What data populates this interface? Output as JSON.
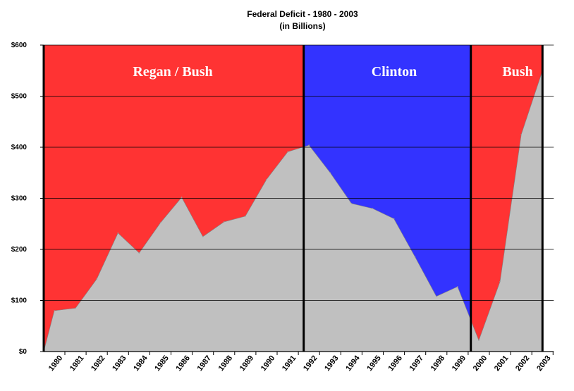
{
  "chart_data": {
    "type": "area",
    "title": "Federal Deficit - 1980 - 2003",
    "subtitle": "(in Billions)",
    "xlabel": "",
    "ylabel": "",
    "ylim": [
      0,
      600
    ],
    "yticks": [
      0,
      100,
      200,
      300,
      400,
      500,
      600
    ],
    "ytick_labels": [
      "$0",
      "$100",
      "$200",
      "$300",
      "$400",
      "$500",
      "$600"
    ],
    "grid": true,
    "colors": {
      "deficit_area": "#c0c0c0",
      "era_red": "#ff3333",
      "era_blue": "#3333ff",
      "era_text": "#ffffff",
      "gridline": "#000000"
    },
    "x_labels": [
      "1980",
      "1981",
      "1982",
      "1983",
      "1984",
      "1985",
      "1986",
      "1987",
      "1988",
      "1989",
      "1990",
      "1991",
      "1992",
      "1993",
      "1994",
      "1995",
      "1996",
      "1997",
      "1998",
      "1999",
      "2000",
      "2001",
      "2002",
      "2003"
    ],
    "x": [
      1979.5,
      1980,
      1981,
      1982,
      1983,
      1984,
      1985,
      1986,
      1987,
      1988,
      1989,
      1990,
      1991,
      1992,
      1993,
      1994,
      1995,
      1996,
      1997,
      1998,
      1999,
      2000,
      2001,
      2002,
      2003
    ],
    "values": [
      0,
      80,
      85,
      142,
      232,
      193,
      252,
      302,
      225,
      254,
      265,
      337,
      391,
      404,
      350,
      290,
      280,
      260,
      185,
      108,
      127,
      22,
      137,
      425,
      550
    ],
    "series": [
      {
        "name": "",
        "values": [
          0,
          80,
          85,
          142,
          232,
          193,
          252,
          302,
          225,
          254,
          265,
          337,
          391,
          404,
          350,
          290,
          280,
          260,
          185,
          108,
          127,
          22,
          137,
          425,
          550
        ]
      }
    ],
    "eras": [
      {
        "label": "Regan / Bush",
        "start": 1979.5,
        "end": 1991.75,
        "color": "#ff3333"
      },
      {
        "label": "Clinton",
        "start": 1991.75,
        "end": 1999.625,
        "color": "#3333ff"
      },
      {
        "label": "Bush",
        "start": 1999.625,
        "end": 2003,
        "color": "#ff3333"
      }
    ]
  }
}
